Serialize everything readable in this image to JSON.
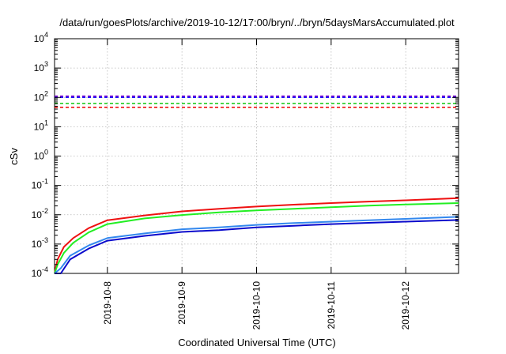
{
  "chart_data": {
    "type": "line",
    "title": "/data/run/goesPlots/archive/2019-10-12/17:00/bryn/../bryn/5daysMarsAccumulated.plot",
    "xlabel": "Coordinated Universal Time (UTC)",
    "ylabel": "cSv",
    "yscale": "log",
    "ylim_exp": [
      -4,
      4
    ],
    "y_ticks": [
      {
        "base": "10",
        "exp": "-4"
      },
      {
        "base": "10",
        "exp": "-3"
      },
      {
        "base": "10",
        "exp": "-2"
      },
      {
        "base": "10",
        "exp": "-1"
      },
      {
        "base": "10",
        "exp": "0"
      },
      {
        "base": "10",
        "exp": "1"
      },
      {
        "base": "10",
        "exp": "2"
      },
      {
        "base": "10",
        "exp": "3"
      },
      {
        "base": "10",
        "exp": "4"
      }
    ],
    "x_range": [
      "2019-10-07T07:00",
      "2019-10-12T17:00"
    ],
    "x_ticks": [
      "2019-10-8",
      "2019-10-9",
      "2019-10-10",
      "2019-10-11",
      "2019-10-12"
    ],
    "x_tick_dates": [
      "2019-10-08",
      "2019-10-09",
      "2019-10-10",
      "2019-10-11",
      "2019-10-12"
    ],
    "grid": true,
    "thresholds": [
      {
        "color": "#7a00cc",
        "value": 110
      },
      {
        "color": "#1a1aff",
        "value": 100
      },
      {
        "color": "#22cc22",
        "value": 62
      },
      {
        "color": "#ee1111",
        "value": 46
      }
    ],
    "series": [
      {
        "color": "#ee1111",
        "points": [
          [
            "2019-10-07T07:00",
            0.0001
          ],
          [
            "2019-10-07T08:00",
            0.0003
          ],
          [
            "2019-10-07T10:00",
            0.0008
          ],
          [
            "2019-10-07T13:00",
            0.0016
          ],
          [
            "2019-10-07T18:00",
            0.0035
          ],
          [
            "2019-10-08T00:00",
            0.0065
          ],
          [
            "2019-10-08T12:00",
            0.0095
          ],
          [
            "2019-10-09T00:00",
            0.013
          ],
          [
            "2019-10-09T12:00",
            0.016
          ],
          [
            "2019-10-10T00:00",
            0.019
          ],
          [
            "2019-10-10T12:00",
            0.022
          ],
          [
            "2019-10-11T00:00",
            0.025
          ],
          [
            "2019-10-11T12:00",
            0.028
          ],
          [
            "2019-10-12T00:00",
            0.031
          ],
          [
            "2019-10-12T17:00",
            0.037
          ]
        ]
      },
      {
        "color": "#22ee22",
        "points": [
          [
            "2019-10-07T07:00",
            0.0001
          ],
          [
            "2019-10-07T08:00",
            0.0002
          ],
          [
            "2019-10-07T10:00",
            0.0005
          ],
          [
            "2019-10-07T13:00",
            0.0011
          ],
          [
            "2019-10-07T18:00",
            0.0025
          ],
          [
            "2019-10-08T00:00",
            0.0048
          ],
          [
            "2019-10-08T12:00",
            0.0075
          ],
          [
            "2019-10-09T00:00",
            0.0098
          ],
          [
            "2019-10-09T12:00",
            0.012
          ],
          [
            "2019-10-10T00:00",
            0.014
          ],
          [
            "2019-10-10T12:00",
            0.016
          ],
          [
            "2019-10-11T00:00",
            0.018
          ],
          [
            "2019-10-11T12:00",
            0.0205
          ],
          [
            "2019-10-12T00:00",
            0.0225
          ],
          [
            "2019-10-12T17:00",
            0.025
          ]
        ]
      },
      {
        "color": "#3388ee",
        "points": [
          [
            "2019-10-07T07:00",
            0.0001
          ],
          [
            "2019-10-07T09:00",
            0.00015
          ],
          [
            "2019-10-07T12:00",
            0.0004
          ],
          [
            "2019-10-07T18:00",
            0.0009
          ],
          [
            "2019-10-08T00:00",
            0.0016
          ],
          [
            "2019-10-08T12:00",
            0.0023
          ],
          [
            "2019-10-09T00:00",
            0.0032
          ],
          [
            "2019-10-09T12:00",
            0.0037
          ],
          [
            "2019-10-10T00:00",
            0.0045
          ],
          [
            "2019-10-10T12:00",
            0.0052
          ],
          [
            "2019-10-11T00:00",
            0.0058
          ],
          [
            "2019-10-11T12:00",
            0.0065
          ],
          [
            "2019-10-12T00:00",
            0.0072
          ],
          [
            "2019-10-12T17:00",
            0.0085
          ]
        ]
      },
      {
        "color": "#0a0acc",
        "points": [
          [
            "2019-10-07T07:00",
            0.0001
          ],
          [
            "2019-10-07T09:00",
            0.0001
          ],
          [
            "2019-10-07T12:00",
            0.0003
          ],
          [
            "2019-10-07T18:00",
            0.0007
          ],
          [
            "2019-10-08T00:00",
            0.0013
          ],
          [
            "2019-10-08T12:00",
            0.0019
          ],
          [
            "2019-10-09T00:00",
            0.0026
          ],
          [
            "2019-10-09T12:00",
            0.003
          ],
          [
            "2019-10-10T00:00",
            0.0037
          ],
          [
            "2019-10-10T12:00",
            0.0042
          ],
          [
            "2019-10-11T00:00",
            0.0048
          ],
          [
            "2019-10-11T12:00",
            0.0053
          ],
          [
            "2019-10-12T00:00",
            0.0058
          ],
          [
            "2019-10-12T17:00",
            0.0066
          ]
        ]
      }
    ]
  }
}
